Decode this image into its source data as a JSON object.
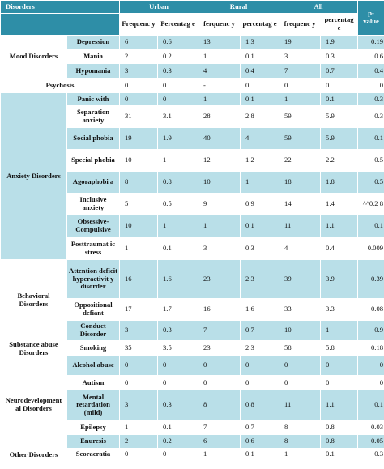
{
  "header": {
    "disorders": "Disorders",
    "urban": "Urban",
    "rural": "Rural",
    "all": "All",
    "frequency_urban": "Frequenc y",
    "percentage_urban": "Percentag e",
    "frequency_rural": "ferquenc y",
    "percentage_rural": "percentag e",
    "frequency_all": "frequenc y",
    "percentage_all": "percentag e",
    "p_value": "p- value"
  },
  "groups": {
    "mood": "Mood Disorders",
    "psychosis": "Psychosis",
    "anxiety": "Anxiety Disorders",
    "behavioral": "Behavioral Disorders",
    "substance": "Substance abuse Disorders",
    "neuro": "Neurodevelopment al Disorders",
    "other": "Other Disorders"
  },
  "rows": [
    {
      "name": "Depression",
      "uf": "6",
      "up": "0.6",
      "rf": "13",
      "rp": "1.3",
      "af": "19",
      "ap": "1.9",
      "p": "0.19"
    },
    {
      "name": "Mania",
      "uf": "2",
      "up": "0.2",
      "rf": "1",
      "rp": "0.1",
      "af": "3",
      "ap": "0.3",
      "p": "0.6"
    },
    {
      "name": "Hypomania",
      "uf": "3",
      "up": "0.3",
      "rf": "4",
      "rp": "0.4",
      "af": "7",
      "ap": "0.7",
      "p": "0.4"
    },
    {
      "name": "",
      "uf": "0",
      "up": "0",
      "rf": "-",
      "rp": "0",
      "af": "0",
      "ap": "0",
      "p": "0"
    },
    {
      "name": "Panic with",
      "uf": "0",
      "up": "0",
      "rf": "1",
      "rp": "0.1",
      "af": "1",
      "ap": "0.1",
      "p": "0.3"
    },
    {
      "name": "Separation anxiety",
      "uf": "31",
      "up": "3.1",
      "rf": "28",
      "rp": "2.8",
      "af": "59",
      "ap": "5.9",
      "p": "0.3"
    },
    {
      "name": "Social phobia",
      "uf": "19",
      "up": "1.9",
      "rf": "40",
      "rp": "4",
      "af": "59",
      "ap": "5.9",
      "p": "0.1"
    },
    {
      "name": "Special phobia",
      "uf": "10",
      "up": "1",
      "rf": "12",
      "rp": "1.2",
      "af": "22",
      "ap": "2.2",
      "p": "0.5"
    },
    {
      "name": "Agoraphobi a",
      "uf": "8",
      "up": "0.8",
      "rf": "10",
      "rp": "1",
      "af": "18",
      "ap": "1.8",
      "p": "0.5"
    },
    {
      "name": "Inclusive anxiety",
      "uf": "5",
      "up": "0.5",
      "rf": "9",
      "rp": "0.9",
      "af": "14",
      "ap": "1.4",
      "p": "^^0.2 8"
    },
    {
      "name": "Obsessive- Compulsive",
      "uf": "10",
      "up": "1",
      "rf": "1",
      "rp": "0.1",
      "af": "11",
      "ap": "1.1",
      "p": "0.1"
    },
    {
      "name": "Posttraumat ic stress",
      "uf": "1",
      "up": "0.1",
      "rf": "3",
      "rp": "0.3",
      "af": "4",
      "ap": "0.4",
      "p": "0.009"
    },
    {
      "name": "Attention deficit hyperactivit y disorder",
      "uf": "16",
      "up": "1.6",
      "rf": "23",
      "rp": "2.3",
      "af": "39",
      "ap": "3.9",
      "p": "0.39"
    },
    {
      "name": "Oppositional defiant",
      "uf": "17",
      "up": "1.7",
      "rf": "16",
      "rp": "1.6",
      "af": "33",
      "ap": "3.3",
      "p": "0.08"
    },
    {
      "name": "Conduct Disorder",
      "uf": "3",
      "up": "0.3",
      "rf": "7",
      "rp": "0.7",
      "af": "10",
      "ap": "1",
      "p": "0.9"
    },
    {
      "name": "Smoking",
      "uf": "35",
      "up": "3.5",
      "rf": "23",
      "rp": "2.3",
      "af": "58",
      "ap": "5.8",
      "p": "0.18"
    },
    {
      "name": "Alcohol abuse",
      "uf": "0",
      "up": "0",
      "rf": "0",
      "rp": "0",
      "af": "0",
      "ap": "0",
      "p": "0"
    },
    {
      "name": "Autism",
      "uf": "0",
      "up": "0",
      "rf": "0",
      "rp": "0",
      "af": "0",
      "ap": "0",
      "p": "0"
    },
    {
      "name": "Mental retardation (mild)",
      "uf": "3",
      "up": "0.3",
      "rf": "8",
      "rp": "0.8",
      "af": "11",
      "ap": "1.1",
      "p": "0.1"
    },
    {
      "name": "Epilepsy",
      "uf": "1",
      "up": "0.1",
      "rf": "7",
      "rp": "0.7",
      "af": "8",
      "ap": "0.8",
      "p": "0.03"
    },
    {
      "name": "Enuresis",
      "uf": "2",
      "up": "0.2",
      "rf": "6",
      "rp": "0.6",
      "af": "8",
      "ap": "0.8",
      "p": "0.05"
    },
    {
      "name": "Scoracratia",
      "uf": "0",
      "up": "0",
      "rf": "1",
      "rp": "0.1",
      "af": "1",
      "ap": "0.1",
      "p": "0.3"
    }
  ]
}
